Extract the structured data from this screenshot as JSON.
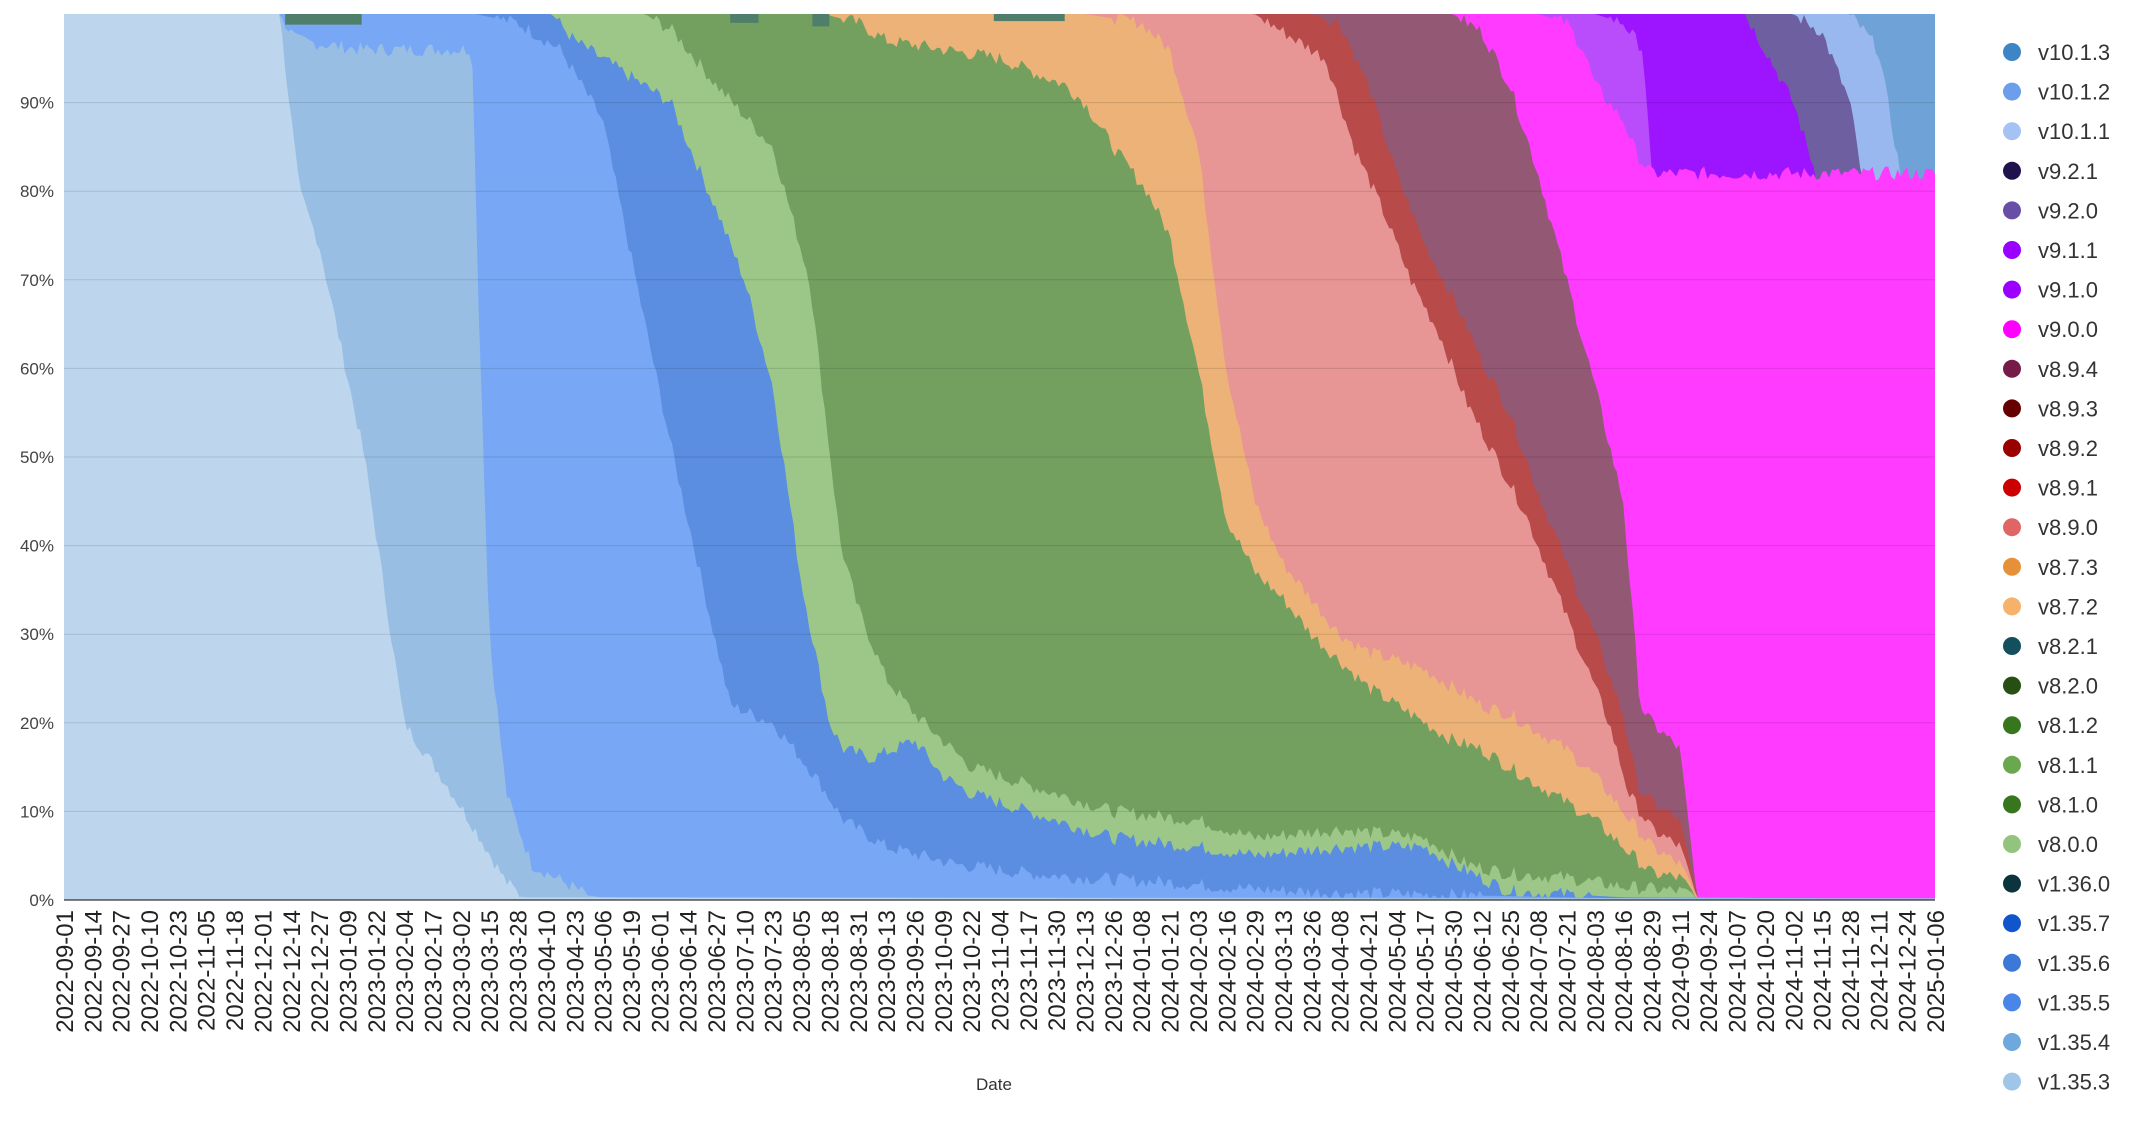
{
  "chart_data": {
    "type": "area",
    "stacked": true,
    "normalized": true,
    "title": "",
    "xlabel": "Date",
    "ylabel": "",
    "ylim": [
      0,
      100
    ],
    "y_ticks": [
      "0%",
      "10%",
      "20%",
      "30%",
      "40%",
      "50%",
      "60%",
      "70%",
      "80%",
      "90%"
    ],
    "x": [
      "2022-09-01",
      "2022-09-14",
      "2022-09-27",
      "2022-10-10",
      "2022-10-23",
      "2022-11-05",
      "2022-11-18",
      "2022-12-01",
      "2022-12-14",
      "2022-12-27",
      "2023-01-09",
      "2023-01-22",
      "2023-02-04",
      "2023-02-17",
      "2023-03-02",
      "2023-03-15",
      "2023-03-28",
      "2023-04-10",
      "2023-04-23",
      "2023-05-06",
      "2023-05-19",
      "2023-06-01",
      "2023-06-14",
      "2023-06-27",
      "2023-07-10",
      "2023-07-23",
      "2023-08-05",
      "2023-08-18",
      "2023-08-31",
      "2023-09-13",
      "2023-09-26",
      "2023-10-09",
      "2023-10-22",
      "2023-11-04",
      "2023-11-17",
      "2023-11-30",
      "2023-12-13",
      "2023-12-26",
      "2024-01-08",
      "2024-01-21",
      "2024-02-03",
      "2024-02-16",
      "2024-02-29",
      "2024-03-13",
      "2024-03-26",
      "2024-04-08",
      "2024-04-21",
      "2024-05-04",
      "2024-05-17",
      "2024-05-30",
      "2024-06-12",
      "2024-06-25",
      "2024-07-08",
      "2024-07-21",
      "2024-08-03",
      "2024-08-16",
      "2024-08-29",
      "2024-09-11",
      "2024-09-24",
      "2024-10-07",
      "2024-10-20",
      "2024-11-02",
      "2024-11-15",
      "2024-11-28",
      "2024-12-11",
      "2024-12-24",
      "2025-01-06"
    ],
    "grid": true,
    "legend_position": "right",
    "legend": [
      {
        "name": "v10.1.3",
        "color": "#3d85c6"
      },
      {
        "name": "v10.1.2",
        "color": "#6d9eeb"
      },
      {
        "name": "v10.1.1",
        "color": "#a4c2f4"
      },
      {
        "name": "v9.2.1",
        "color": "#20124d"
      },
      {
        "name": "v9.2.0",
        "color": "#674ea7"
      },
      {
        "name": "v9.1.1",
        "color": "#9900ff"
      },
      {
        "name": "v9.1.0",
        "color": "#9b00ff"
      },
      {
        "name": "v9.0.0",
        "color": "#ff00ff"
      },
      {
        "name": "v8.9.4",
        "color": "#741b47"
      },
      {
        "name": "v8.9.3",
        "color": "#660000"
      },
      {
        "name": "v8.9.2",
        "color": "#990000"
      },
      {
        "name": "v8.9.1",
        "color": "#cc0000"
      },
      {
        "name": "v8.9.0",
        "color": "#e06666"
      },
      {
        "name": "v8.7.3",
        "color": "#e69138"
      },
      {
        "name": "v8.7.2",
        "color": "#f6b26b"
      },
      {
        "name": "v8.2.1",
        "color": "#134f5c"
      },
      {
        "name": "v8.2.0",
        "color": "#274e13"
      },
      {
        "name": "v8.1.2",
        "color": "#38761d"
      },
      {
        "name": "v8.1.1",
        "color": "#6aa84f"
      },
      {
        "name": "v8.1.0",
        "color": "#38761d"
      },
      {
        "name": "v8.0.0",
        "color": "#93c47d"
      },
      {
        "name": "v1.36.0",
        "color": "#0c343d"
      },
      {
        "name": "v1.35.7",
        "color": "#1155cc"
      },
      {
        "name": "v1.35.6",
        "color": "#3c78d8"
      },
      {
        "name": "v1.35.5",
        "color": "#4a86e8"
      },
      {
        "name": "v1.35.4",
        "color": "#6fa8dc"
      },
      {
        "name": "v1.35.3",
        "color": "#9fc5e8"
      }
    ],
    "bands": [
      {
        "color": "#bdd6ee",
        "points": [
          [
            0,
            0
          ],
          [
            111,
            0
          ],
          [
            115,
            18
          ],
          [
            118,
            60
          ],
          [
            120,
            80
          ],
          [
            125,
            88
          ],
          [
            131,
            93
          ],
          [
            136,
            97
          ],
          [
            146,
            100
          ]
        ],
        "before": 0
      },
      {
        "color": "#98bfe3",
        "points": [
          [
            111,
            0
          ],
          [
            115,
            18
          ],
          [
            118,
            60
          ],
          [
            120,
            80
          ],
          [
            125,
            88
          ],
          [
            131,
            93
          ],
          [
            136,
            97
          ],
          [
            146,
            100
          ]
        ],
        "before_points": null
      },
      {
        "color": "#78a8f5",
        "points": [
          [
            146,
            100
          ],
          [
            164,
            100
          ]
        ]
      }
    ]
  }
}
